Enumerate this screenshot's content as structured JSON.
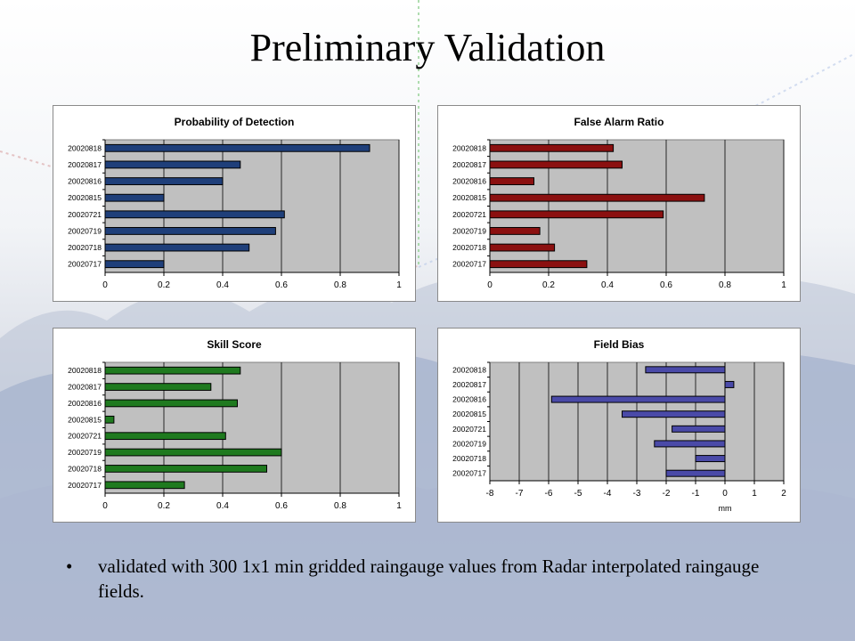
{
  "slide": {
    "title": "Preliminary Validation",
    "bullet": "validated with 300 1x1 min gridded raingauge values from Radar interpolated raingauge fields.",
    "bullet_marker": "•"
  },
  "chart_data": [
    {
      "type": "bar",
      "orientation": "horizontal",
      "title": "Probability of Detection",
      "categories": [
        "20020818",
        "20020817",
        "20020816",
        "20020815",
        "20020721",
        "20020719",
        "20020718",
        "20020717"
      ],
      "values": [
        0.9,
        0.46,
        0.4,
        0.2,
        0.61,
        0.58,
        0.49,
        0.2
      ],
      "xlim": [
        0,
        1
      ],
      "xticks": [
        "0",
        "0.2",
        "0.4",
        "0.6",
        "0.8",
        "1"
      ],
      "xlabel": "",
      "ylabel": "",
      "bar_color": "#1f3f7a",
      "plot_bg": "#c0c0c0",
      "grid": true
    },
    {
      "type": "bar",
      "orientation": "horizontal",
      "title": "False Alarm Ratio",
      "categories": [
        "20020818",
        "20020817",
        "20020816",
        "20020815",
        "20020721",
        "20020719",
        "20020718",
        "20020717"
      ],
      "values": [
        0.42,
        0.45,
        0.15,
        0.73,
        0.59,
        0.17,
        0.22,
        0.33
      ],
      "xlim": [
        0,
        1
      ],
      "xticks": [
        "0",
        "0.2",
        "0.4",
        "0.6",
        "0.8",
        "1"
      ],
      "xlabel": "",
      "ylabel": "",
      "bar_color": "#8b1010",
      "plot_bg": "#c0c0c0",
      "grid": true
    },
    {
      "type": "bar",
      "orientation": "horizontal",
      "title": "Skill Score",
      "categories": [
        "20020818",
        "20020817",
        "20020816",
        "20020815",
        "20020721",
        "20020719",
        "20020718",
        "20020717"
      ],
      "values": [
        0.46,
        0.36,
        0.45,
        0.03,
        0.41,
        0.6,
        0.55,
        0.27
      ],
      "xlim": [
        0,
        1
      ],
      "xticks": [
        "0",
        "0.2",
        "0.4",
        "0.6",
        "0.8",
        "1"
      ],
      "xlabel": "",
      "ylabel": "",
      "bar_color": "#1f7a1f",
      "plot_bg": "#c0c0c0",
      "grid": true
    },
    {
      "type": "bar",
      "orientation": "horizontal",
      "title": "Field Bias",
      "categories": [
        "20020818",
        "20020817",
        "20020816",
        "20020815",
        "20020721",
        "20020719",
        "20020718",
        "20020717"
      ],
      "values": [
        -2.7,
        0.3,
        -5.9,
        -3.5,
        -1.8,
        -2.4,
        -1.0,
        -2.0
      ],
      "xlim": [
        -8,
        2
      ],
      "xticks": [
        "-8",
        "-7",
        "-6",
        "-5",
        "-4",
        "-3",
        "-2",
        "-1",
        "0",
        "1",
        "2"
      ],
      "xlabel": "mm",
      "ylabel": "",
      "bar_color": "#4a4aa8",
      "plot_bg": "#c0c0c0",
      "grid": true
    }
  ]
}
